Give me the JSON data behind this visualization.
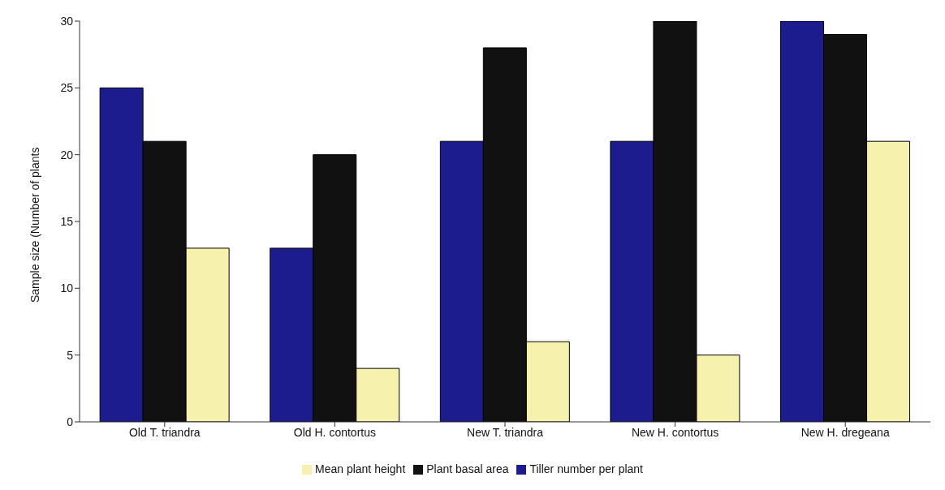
{
  "chart_data": {
    "type": "bar",
    "ylabel": "Sample size (Number of plants",
    "categories": [
      "Old T. triandra",
      "Old H. contortus",
      "New T. triandra",
      "New H. contortus",
      "New H. dregeana"
    ],
    "series": [
      {
        "name": "Tiller number per plant",
        "color": "#1c1c8e",
        "values": [
          25,
          13,
          21,
          21,
          30
        ]
      },
      {
        "name": "Plant basal area",
        "color": "#111111",
        "values": [
          21,
          20,
          28,
          30,
          29
        ]
      },
      {
        "name": "Mean plant height",
        "color": "#f6f1ad",
        "values": [
          13,
          4,
          6,
          5,
          21
        ]
      }
    ],
    "ylim": [
      0,
      30
    ],
    "yticks": [
      0,
      5,
      10,
      15,
      20,
      25,
      30
    ],
    "grid": false,
    "legend": "bottom"
  }
}
